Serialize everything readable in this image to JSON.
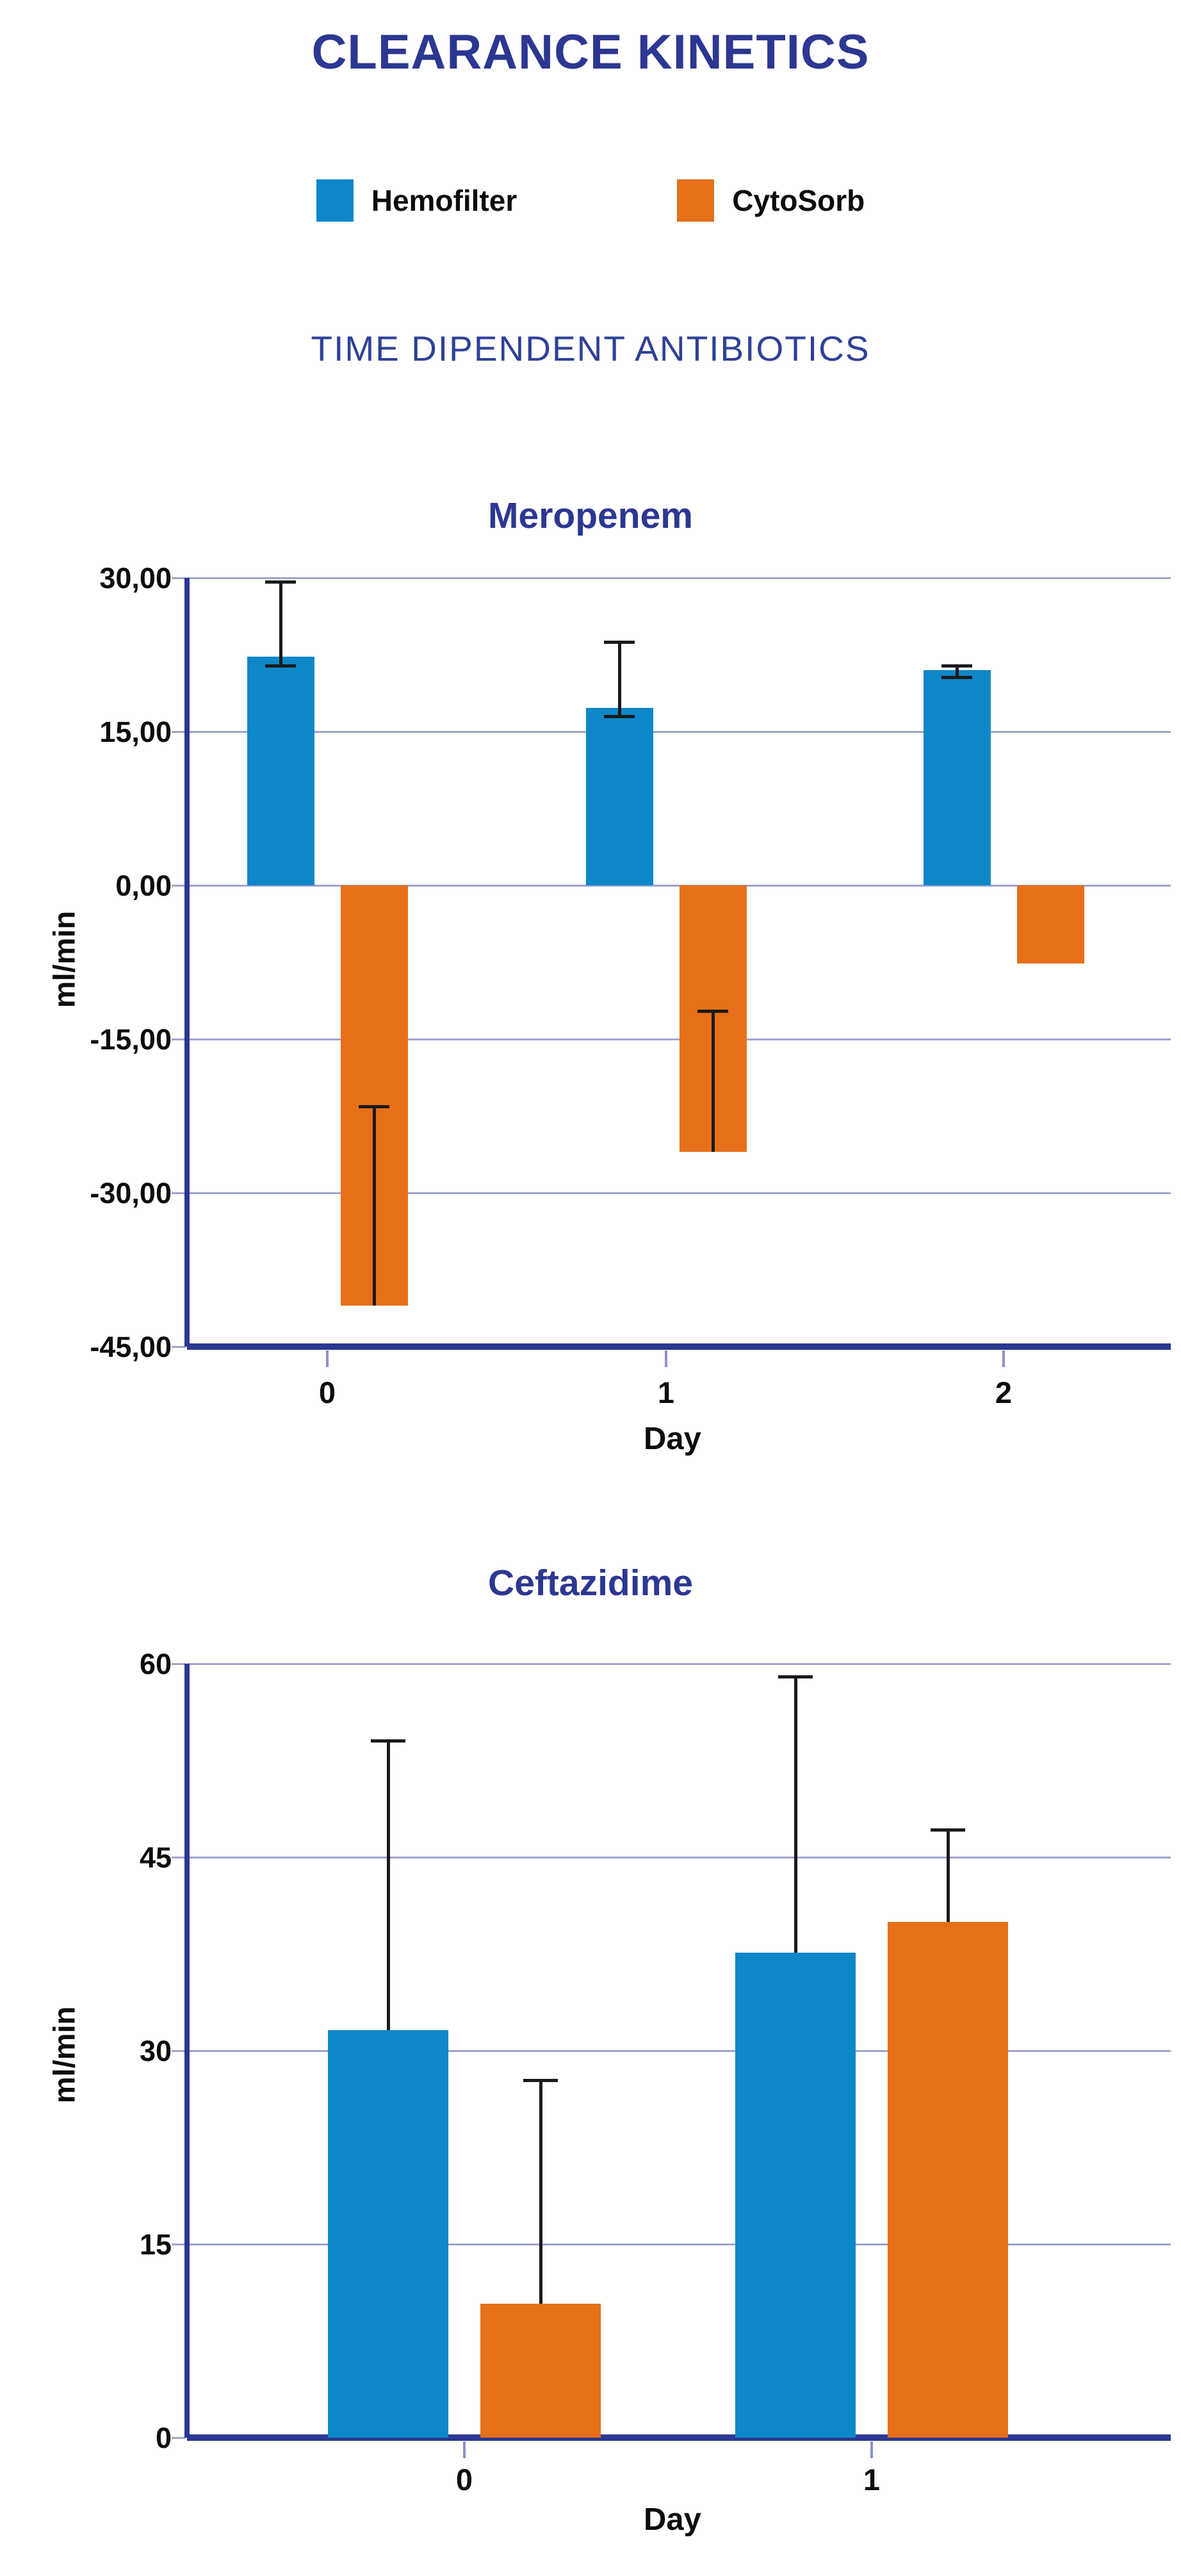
{
  "page": {
    "title": "CLEARANCE KINETICS",
    "subtitle": "TIME DIPENDENT ANTIBIOTICS"
  },
  "colors": {
    "accent_blue": "#2c3792",
    "hemofilter": "#0e87c9",
    "cytosorb": "#e66f1a",
    "gridline": "#a0a3cd",
    "error_bar": "#1a1a1a"
  },
  "legend": [
    {
      "label": "Hemofilter",
      "color": "#0e87c9"
    },
    {
      "label": "CytoSorb",
      "color": "#e66f1a"
    }
  ],
  "chart_data": [
    {
      "type": "bar",
      "title": "Meropenem",
      "xlabel": "Day",
      "ylabel": "ml/min",
      "categories": [
        "0",
        "1",
        "2"
      ],
      "ylim": [
        -45,
        30
      ],
      "ytick_step": 15,
      "ytick_labels": [
        "30,00",
        "15,00",
        "0,00",
        "-15,00",
        "-30,00",
        "-45,00"
      ],
      "grid": true,
      "legend_position": "top",
      "series": [
        {
          "name": "Hemofilter",
          "color": "#0e87c9",
          "values": [
            22.3,
            17.3,
            21.0
          ],
          "err_lo": [
            21.4,
            16.5,
            20.3
          ],
          "err_hi": [
            29.6,
            23.7,
            21.4
          ]
        },
        {
          "name": "CytoSorb",
          "color": "#e66f1a",
          "values": [
            -41.0,
            -26.0,
            -7.6
          ],
          "err_lo": [
            null,
            null,
            null
          ],
          "err_hi": [
            -21.6,
            -12.3,
            null
          ]
        }
      ]
    },
    {
      "type": "bar",
      "title": "Ceftazidime",
      "xlabel": "Day",
      "ylabel": "ml/min",
      "categories": [
        "0",
        "1"
      ],
      "ylim": [
        0,
        60
      ],
      "ytick_step": 15,
      "ytick_labels": [
        "60",
        "45",
        "30",
        "15",
        "0"
      ],
      "grid": true,
      "legend_position": "top",
      "series": [
        {
          "name": "Hemofilter",
          "color": "#0e87c9",
          "values": [
            31.6,
            37.6
          ],
          "err_lo": [
            null,
            null
          ],
          "err_hi": [
            54.0,
            59.0
          ]
        },
        {
          "name": "CytoSorb",
          "color": "#e66f1a",
          "values": [
            10.4,
            40.0
          ],
          "err_lo": [
            null,
            null
          ],
          "err_hi": [
            27.7,
            47.1
          ]
        }
      ]
    }
  ]
}
